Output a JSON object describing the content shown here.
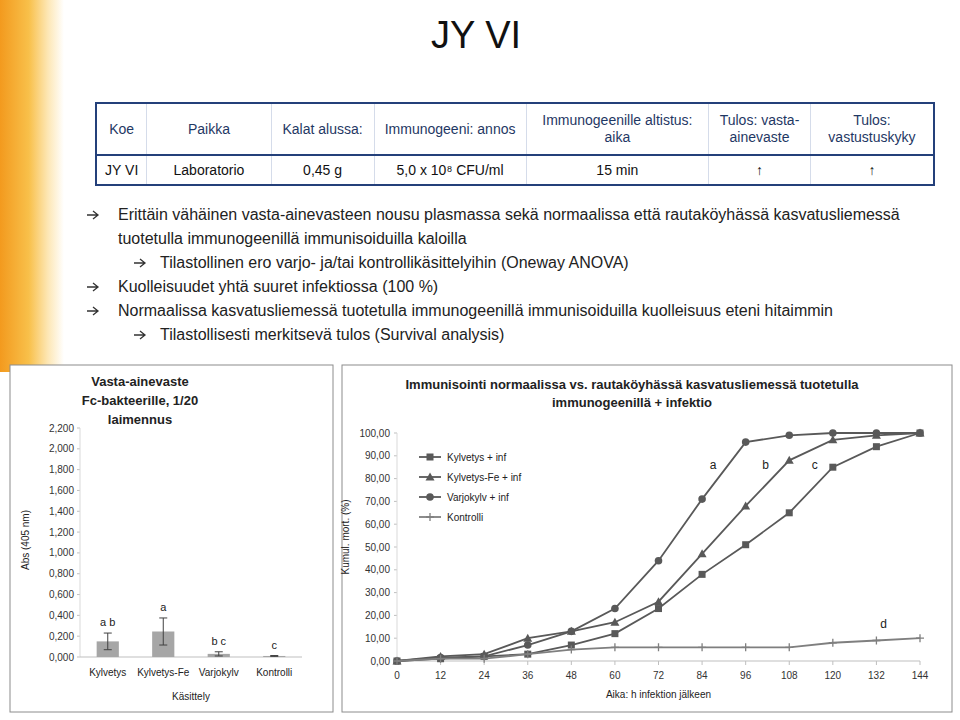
{
  "title": "JY VI",
  "table": {
    "header": [
      "Koe",
      "Paikka",
      "Kalat alussa:",
      "Immunogeeni: annos",
      "Immunogeenille altistus: aika",
      "Tulos: vasta-ainevaste",
      "Tulos: vastustuskyky"
    ],
    "rows": [
      [
        "JY VI",
        "Laboratorio",
        "0,45 g",
        "5,0 x 10⁸ CFU/ml",
        "15 min",
        "↑",
        "↑"
      ]
    ]
  },
  "bullets": [
    {
      "text": "Erittäin vähäinen vasta-ainevasteen nousu plasmassa sekä normaalissa että rautaköyhässä kasvatusliemessä tuotetulla immunogeenillä immunisoiduilla kaloilla",
      "sub": [
        "Tilastollinen ero varjo- ja/tai kontrollikäsittelyihin (Oneway ANOVA)"
      ]
    },
    {
      "text": "Kuolleisuudet yhtä suuret infektiossa (100 %)",
      "sub": []
    },
    {
      "text": "Normaalissa kasvatusliemessä tuotetulla immunogeenillä immunisoiduilla kuolleisuus eteni hitaimmin",
      "sub": [
        "Tilastollisesti merkitsevä tulos (Survival analysis)"
      ]
    }
  ],
  "chart_data": [
    {
      "type": "bar",
      "title": "Vasta-ainevaste Fc-bakteerille, 1/20 laimennus",
      "x_label": "Käsittely",
      "y_label": "Abs (405 nm)",
      "categories": [
        "Kylvetys",
        "Kylvetys-Fe",
        "Varjokylv",
        "Kontrolli"
      ],
      "values": [
        0.15,
        0.245,
        0.03,
        0.01
      ],
      "errors": [
        0.08,
        0.13,
        0.02,
        0.004
      ],
      "annotations": [
        "a b",
        "a",
        "b c",
        "c"
      ],
      "color": "#a6a6a6",
      "ylim": [
        0,
        2.2
      ],
      "yticks": [
        {
          "value": 0,
          "label": "0,000"
        },
        {
          "value": 0.2,
          "label": "0,200"
        },
        {
          "value": 0.4,
          "label": "0,400"
        },
        {
          "value": 0.6,
          "label": "0,600"
        },
        {
          "value": 0.8,
          "label": "0,800"
        },
        {
          "value": 1.0,
          "label": "1,000"
        },
        {
          "value": 1.2,
          "label": "1,200"
        },
        {
          "value": 1.4,
          "label": "1,400"
        },
        {
          "value": 1.6,
          "label": "1,600"
        },
        {
          "value": 1.8,
          "label": "1,800"
        },
        {
          "value": 2.0,
          "label": "2,000"
        },
        {
          "value": 2.2,
          "label": "2,200"
        }
      ],
      "grid": false
    },
    {
      "type": "line",
      "title": "Immunisointi normaalissa vs. rautaköyhässä kasvatusliemessä tuotetulla immunogeenillä + infektio",
      "x_label": "Aika: h infektion jälkeen",
      "y_label": "Kumul. mort. (%)",
      "x": [
        0,
        12,
        24,
        36,
        48,
        60,
        72,
        84,
        96,
        108,
        120,
        132,
        144
      ],
      "series": [
        {
          "name": "Kylvetys + inf",
          "color": "#595959",
          "marker": "square",
          "line_style": "solid",
          "values": [
            0,
            1,
            2,
            3,
            7,
            12,
            23,
            38,
            51,
            65,
            85,
            94,
            100
          ]
        },
        {
          "name": "Kylvetys-Fe + inf",
          "color": "#595959",
          "marker": "triangle",
          "line_style": "solid",
          "values": [
            0,
            2,
            3,
            10,
            13,
            17,
            26,
            47,
            68,
            88,
            97,
            99,
            100
          ]
        },
        {
          "name": "Varjokylv + inf",
          "color": "#595959",
          "marker": "circle",
          "line_style": "solid",
          "values": [
            0,
            1.5,
            2,
            7,
            13,
            23,
            44,
            71,
            96,
            99,
            100,
            100,
            100
          ]
        },
        {
          "name": "Kontrolli",
          "color": "#7f7f7f",
          "marker": "plus",
          "line_style": "solid",
          "values": [
            0,
            1,
            1,
            3,
            5,
            6,
            6,
            6,
            6,
            6,
            8,
            9,
            10
          ]
        }
      ],
      "annotations": [
        {
          "text": "a",
          "x": 87,
          "y": 84
        },
        {
          "text": "b",
          "x": 101.5,
          "y": 84
        },
        {
          "text": "c",
          "x": 115,
          "y": 84
        },
        {
          "text": "d",
          "x": 134,
          "y": 14.5
        }
      ],
      "xlim": [
        0,
        144
      ],
      "xticks": [
        0,
        12,
        24,
        36,
        48,
        60,
        72,
        84,
        96,
        108,
        120,
        132,
        144
      ],
      "ylim": [
        0,
        100
      ],
      "yticks": [
        {
          "value": 0,
          "label": "0,00"
        },
        {
          "value": 10,
          "label": "10,00"
        },
        {
          "value": 20,
          "label": "20,00"
        },
        {
          "value": 30,
          "label": "30,00"
        },
        {
          "value": 40,
          "label": "40,00"
        },
        {
          "value": 50,
          "label": "50,00"
        },
        {
          "value": 60,
          "label": "60,00"
        },
        {
          "value": 70,
          "label": "70,00"
        },
        {
          "value": 80,
          "label": "80,00"
        },
        {
          "value": 90,
          "label": "90,00"
        },
        {
          "value": 100,
          "label": "100,00"
        }
      ],
      "legend": "upper left",
      "grid": false
    }
  ]
}
